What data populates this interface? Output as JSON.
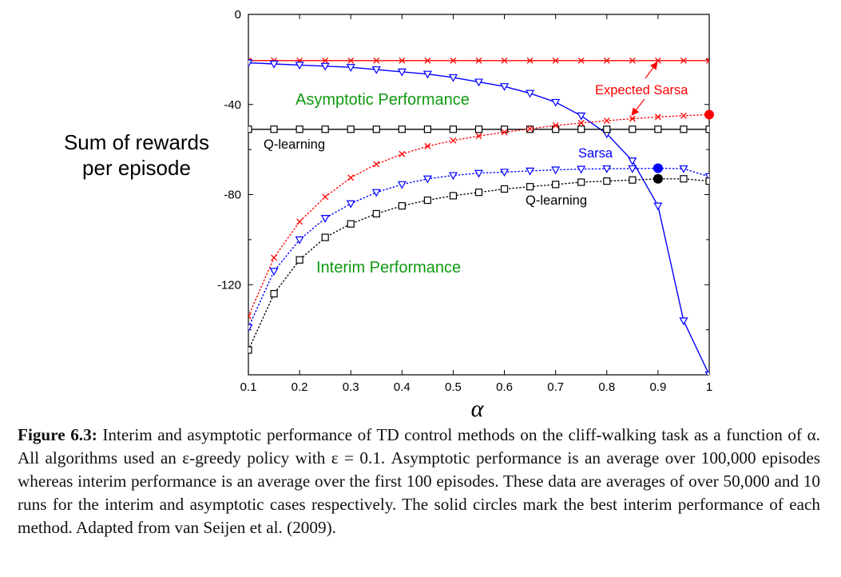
{
  "chart_data": {
    "type": "line",
    "xlabel": "α",
    "ylabel_line1": "Sum of rewards",
    "ylabel_line2": "per episode",
    "xlim": [
      0.1,
      1.0
    ],
    "ylim": [
      -160,
      0
    ],
    "xticks": [
      0.1,
      0.2,
      0.3,
      0.4,
      0.5,
      0.6,
      0.7,
      0.8,
      0.9,
      1.0
    ],
    "xtick_labels": [
      "0.1",
      "0.2",
      "0.3",
      "0.4",
      "0.5",
      "0.6",
      "0.7",
      "0.8",
      "0.9",
      "1"
    ],
    "yticks": [
      0,
      -40,
      -80,
      -120
    ],
    "ytick_labels": [
      "0",
      "-40",
      "-80",
      "-120"
    ],
    "grid": false,
    "colors": {
      "expected_sarsa": "#ff0000",
      "sarsa": "#0000ff",
      "q_learning": "#000000",
      "section_label": "#119911"
    },
    "x": [
      0.1,
      0.15,
      0.2,
      0.25,
      0.3,
      0.35,
      0.4,
      0.45,
      0.5,
      0.55,
      0.6,
      0.65,
      0.7,
      0.75,
      0.8,
      0.85,
      0.9,
      0.95,
      1.0
    ],
    "series": [
      {
        "name": "Expected Sarsa",
        "phase": "asymptotic",
        "marker": "x",
        "line": "solid",
        "values": [
          -20.5,
          -20.5,
          -20.5,
          -20.5,
          -20.5,
          -20.5,
          -20.5,
          -20.5,
          -20.5,
          -20.5,
          -20.5,
          -20.5,
          -20.5,
          -20.5,
          -20.5,
          -20.5,
          -20.5,
          -20.5,
          -20.5
        ]
      },
      {
        "name": "Sarsa",
        "phase": "asymptotic",
        "marker": "triangle",
        "line": "solid",
        "values": [
          -21.5,
          -22,
          -22.5,
          -23,
          -23.5,
          -24.5,
          -25.5,
          -26.5,
          -28,
          -30,
          -32,
          -35,
          -39,
          -45,
          -53,
          -65,
          -85,
          -136,
          -160
        ]
      },
      {
        "name": "Q-learning",
        "phase": "asymptotic",
        "marker": "square",
        "line": "solid",
        "values": [
          -51,
          -51,
          -51,
          -51,
          -51,
          -51,
          -51,
          -51,
          -51,
          -51,
          -51,
          -51,
          -51,
          -51,
          -51,
          -51,
          -51,
          -51,
          -51
        ]
      },
      {
        "name": "Expected Sarsa",
        "phase": "interim",
        "marker": "x",
        "line": "dotted",
        "values": [
          -134,
          -108,
          -92,
          -81,
          -72.5,
          -66.5,
          -62,
          -58.5,
          -56,
          -54,
          -52.3,
          -50.8,
          -49.3,
          -48.2,
          -47.2,
          -46.3,
          -45.5,
          -45,
          -44.5
        ]
      },
      {
        "name": "Sarsa",
        "phase": "interim",
        "marker": "triangle",
        "line": "dotted",
        "values": [
          -139,
          -114,
          -100,
          -90.5,
          -84,
          -79,
          -75.5,
          -73,
          -71.5,
          -70.5,
          -70,
          -69.5,
          -69,
          -68.7,
          -68.5,
          -68.5,
          -68.3,
          -68.5,
          -72
        ]
      },
      {
        "name": "Q-learning",
        "phase": "interim",
        "marker": "square",
        "line": "dotted",
        "values": [
          -149,
          -124,
          -109,
          -99,
          -93,
          -88.5,
          -85,
          -82.5,
          -80.5,
          -79,
          -77.5,
          -76.5,
          -75.5,
          -74.5,
          -74,
          -73.5,
          -73,
          -73,
          -74
        ]
      }
    ],
    "best_interim": [
      {
        "name": "Expected Sarsa",
        "x": 1.0,
        "y": -44.5
      },
      {
        "name": "Sarsa",
        "x": 0.9,
        "y": -68.3
      },
      {
        "name": "Q-learning",
        "x": 0.9,
        "y": -73
      }
    ],
    "annotations": {
      "asymptotic": "Asymptotic Performance",
      "interim": "Interim Performance",
      "expected_sarsa": "Expected Sarsa",
      "sarsa": "Sarsa",
      "q_learning_asym": "Q-learning",
      "q_learning_interim": "Q-learning"
    }
  },
  "caption": {
    "label": "Figure 6.3:",
    "text": "Interim and asymptotic performance of TD control methods on the cliff-walking task as a function of α. All algorithms used an ε-greedy policy with ε = 0.1. Asymptotic performance is an average over 100,000 episodes whereas interim performance is an average over the first 100 episodes. These data are averages of over 50,000 and 10 runs for the interim and asymptotic cases respectively. The solid circles mark the best interim performance of each method. Adapted from van Seijen et al. (2009)."
  }
}
